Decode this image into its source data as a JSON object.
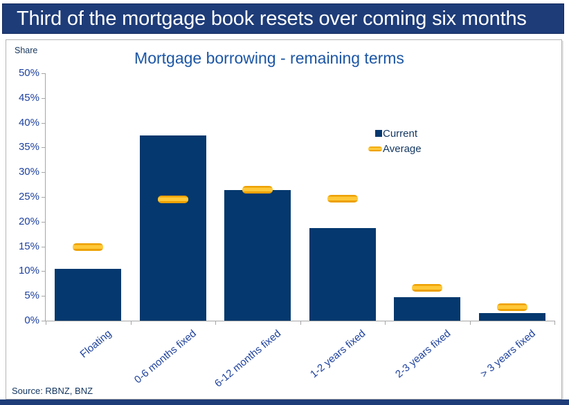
{
  "banner": {
    "title": "Third of the mortgage book resets over coming six months"
  },
  "chart_data": {
    "type": "bar",
    "title": "Mortgage borrowing - remaining terms",
    "ylabel": "Share",
    "xlabel": "",
    "categories": [
      "Floating",
      "0-6 months fixed",
      "6-12 months fixed",
      "1-2 years fixed",
      "2-3 years fixed",
      "> 3 years fixed"
    ],
    "series": [
      {
        "name": "Current",
        "marker": "bar",
        "color": "#04386e",
        "values": [
          10.5,
          37.4,
          26.4,
          18.7,
          4.8,
          1.6
        ]
      },
      {
        "name": "Average",
        "marker": "dash",
        "color": "#f3a800",
        "values": [
          14.9,
          24.5,
          26.5,
          24.7,
          6.6,
          2.7
        ]
      }
    ],
    "ylim": [
      0,
      50
    ],
    "ytick_step": 5,
    "ytick_suffix": "%",
    "grid": false,
    "legend_position": "inside-right",
    "source": "Source: RBNZ, BNZ"
  }
}
